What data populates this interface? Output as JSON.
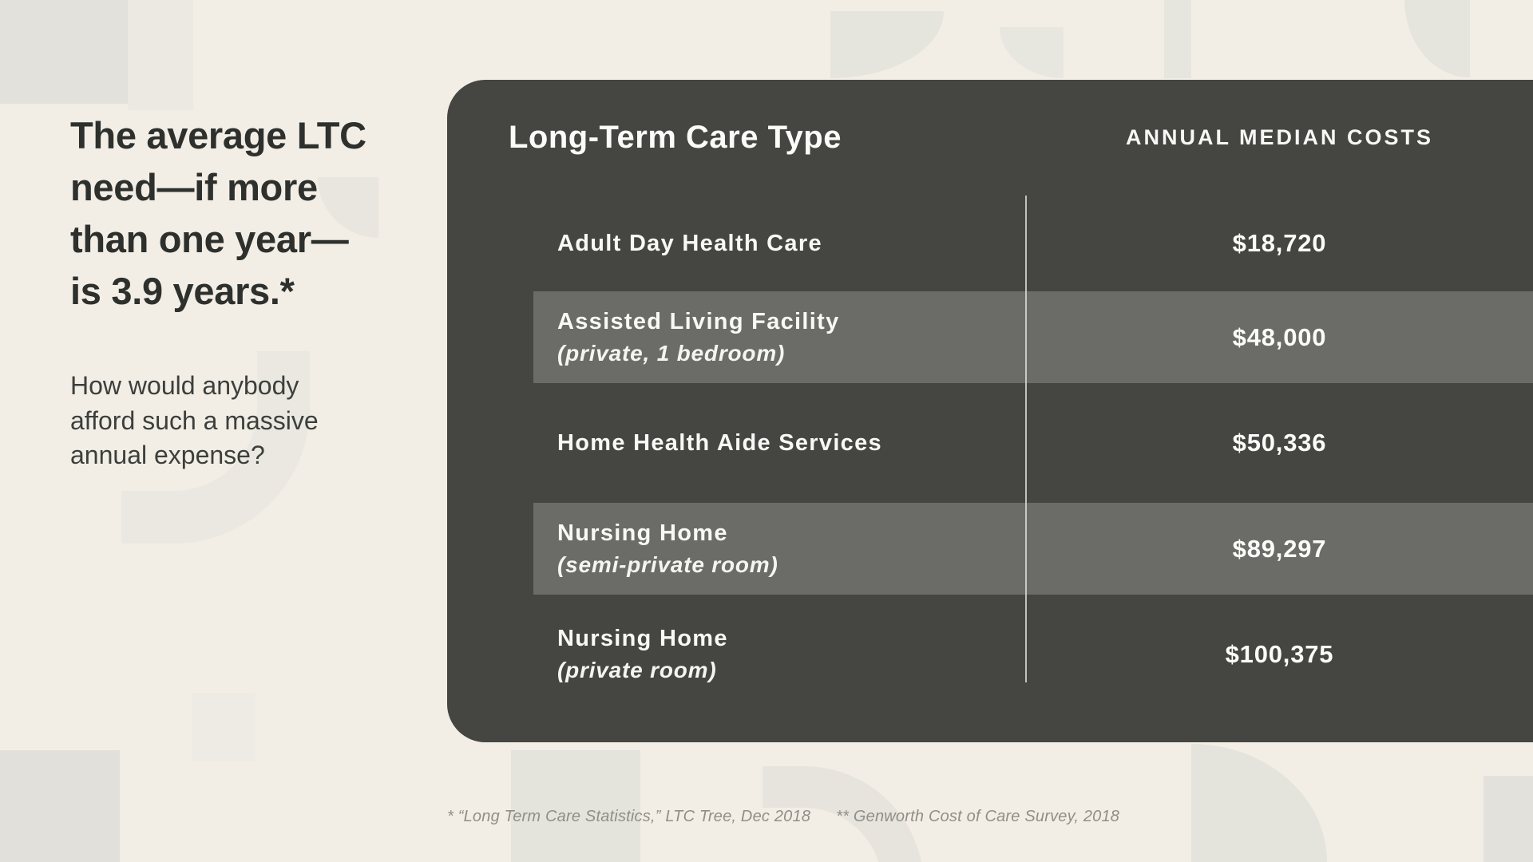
{
  "palette": {
    "background": "#f2eee5",
    "card": "#454542",
    "highlight_band": "#6b6b68",
    "headline_text": "#2d302d",
    "card_text": "#fbfbf9",
    "footnote_text": "#8f8e88"
  },
  "left_panel": {
    "headline": "The average LTC\nneed—if more\nthan one year—\nis 3.9 years.*",
    "subtext": "How would anybody\nafford such a massive\nannual expense?"
  },
  "table": {
    "col1_header": "Long-Term Care Type",
    "col2_header": "ANNUAL MEDIAN COSTS",
    "rows": [
      {
        "label": "Adult Day Health Care",
        "sublabel": "",
        "cost": "$18,720",
        "highlighted": false
      },
      {
        "label": "Assisted Living Facility",
        "sublabel": "(private, 1 bedroom)",
        "cost": "$48,000",
        "highlighted": true
      },
      {
        "label": "Home Health Aide Services",
        "sublabel": "",
        "cost": "$50,336",
        "highlighted": false
      },
      {
        "label": "Nursing Home",
        "sublabel": "(semi-private room)",
        "cost": "$89,297",
        "highlighted": true
      },
      {
        "label": "Nursing Home",
        "sublabel": "(private room)",
        "cost": "$100,375",
        "highlighted": false
      }
    ]
  },
  "footnotes": [
    "* “Long Term Care Statistics,” LTC Tree, Dec 2018",
    "** Genworth Cost of Care Survey, 2018"
  ],
  "chart_data": {
    "type": "table",
    "title": "Long-Term Care Type vs Annual Median Costs",
    "columns": [
      "Long-Term Care Type",
      "ANNUAL MEDIAN COSTS"
    ],
    "categories": [
      "Adult Day Health Care",
      "Assisted Living Facility (private, 1 bedroom)",
      "Home Health Aide Services",
      "Nursing Home (semi-private room)",
      "Nursing Home (private room)"
    ],
    "values": [
      18720,
      48000,
      50336,
      89297,
      100375
    ],
    "annotations": [
      "The average LTC need—if more than one year—is 3.9 years.*",
      "How would anybody afford such a massive annual expense?"
    ],
    "sources": [
      "* “Long Term Care Statistics,” LTC Tree, Dec 2018",
      "** Genworth Cost of Care Survey, 2018"
    ]
  }
}
